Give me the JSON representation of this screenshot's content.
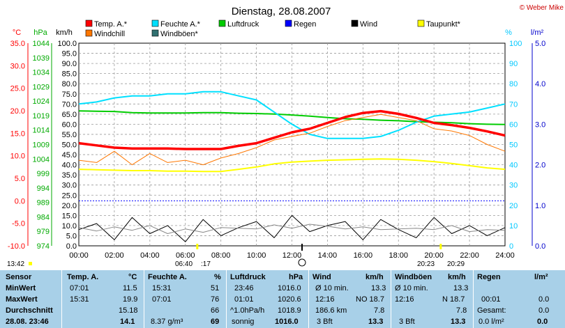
{
  "header": {
    "title": "Dienstag, 28.08.2007",
    "credit": "© Weber Mike"
  },
  "colors": {
    "temp": "#ff0000",
    "humidity": "#00e0ff",
    "pressure": "#00cc00",
    "rain": "#0000ff",
    "wind": "#000000",
    "dewpoint": "#ffff00",
    "windchill": "#ff7700",
    "gust": "#307070",
    "grid": "#9a9a9a"
  },
  "chart_data": {
    "type": "line",
    "title": "Dienstag, 28.08.2007",
    "legend": [
      {
        "name": "Temp. A.*",
        "color": "#ff0000"
      },
      {
        "name": "Feuchte A.*",
        "color": "#00e0ff"
      },
      {
        "name": "Luftdruck",
        "color": "#00cc00"
      },
      {
        "name": "Regen",
        "color": "#0000ff"
      },
      {
        "name": "Wind",
        "color": "#000000"
      },
      {
        "name": "Taupunkt*",
        "color": "#ffff00"
      },
      {
        "name": "Windchill",
        "color": "#ff7700"
      },
      {
        "name": "Windböen*",
        "color": "#307070"
      }
    ],
    "axis_units": {
      "temp": "°C",
      "pressure": "hPa",
      "wind": "km/h",
      "humidity": "%",
      "rain": "l/m²"
    },
    "temp_ticks": [
      "35.0",
      "30.0",
      "25.0",
      "20.0",
      "15.0",
      "10.0",
      "5.0",
      "0.0",
      "-5.0",
      "-10.0"
    ],
    "pressure_ticks": [
      "1044",
      "1039",
      "1034",
      "1029",
      "1024",
      "1019",
      "1014",
      "1009",
      "1004",
      "999",
      "994",
      "989",
      "984",
      "979",
      "974"
    ],
    "wind_ticks": [
      "100.0",
      "95.0",
      "90.0",
      "85.0",
      "80.0",
      "75.0",
      "70.0",
      "65.0",
      "60.0",
      "55.0",
      "50.0",
      "45.0",
      "40.0",
      "35.0",
      "30.0",
      "25.0",
      "20.0",
      "15.0",
      "10.0",
      "5.0",
      "0.0"
    ],
    "humidity_ticks": [
      "100",
      "90",
      "80",
      "70",
      "60",
      "50",
      "40",
      "30",
      "20",
      "10",
      "0"
    ],
    "rain_ticks": [
      "5.0",
      "4.0",
      "3.0",
      "2.0",
      "1.0",
      "0.0"
    ],
    "time_ticks": [
      "00:00",
      "02:00",
      "04:00",
      "06:00",
      "08:00",
      "10:00",
      "12:00",
      "14:00",
      "16:00",
      "18:00",
      "20:00",
      "22:00",
      "24:00"
    ],
    "temp_ylim": [
      -10,
      35
    ],
    "wind_ylim": [
      0,
      100
    ],
    "x_hours": [
      0,
      1,
      2,
      3,
      4,
      5,
      6,
      7,
      8,
      9,
      10,
      11,
      12,
      13,
      14,
      15,
      16,
      17,
      18,
      19,
      20,
      21,
      22,
      23,
      24
    ],
    "temperature": [
      12.8,
      12.3,
      11.8,
      11.6,
      11.6,
      11.6,
      11.5,
      11.5,
      11.5,
      12.2,
      12.8,
      14.0,
      15.2,
      16.0,
      17.3,
      18.6,
      19.5,
      19.9,
      19.3,
      18.4,
      17.3,
      16.8,
      16.2,
      15.4,
      14.5
    ],
    "humidity": [
      70,
      71,
      73,
      74,
      74,
      75,
      75,
      76,
      76,
      74,
      72,
      66,
      60,
      55,
      53,
      53,
      53,
      54,
      57,
      61,
      64,
      65,
      66,
      68,
      70
    ],
    "pressure": [
      1020.6,
      1020.5,
      1020.4,
      1020.0,
      1019.9,
      1019.9,
      1019.9,
      1020.0,
      1020.0,
      1019.8,
      1019.7,
      1019.5,
      1019.2,
      1018.8,
      1018.3,
      1017.9,
      1017.7,
      1017.4,
      1017.2,
      1016.9,
      1016.7,
      1016.5,
      1016.2,
      1016.0,
      1015.9
    ],
    "dewpoint": [
      7.0,
      6.9,
      6.8,
      6.7,
      6.7,
      6.6,
      6.6,
      6.5,
      6.5,
      7.0,
      7.5,
      8.2,
      8.6,
      8.8,
      9.0,
      9.1,
      9.2,
      9.3,
      9.2,
      9.0,
      8.7,
      8.3,
      7.8,
      7.3,
      7.0
    ],
    "windchill": [
      9.0,
      8.5,
      11.0,
      8.0,
      10.5,
      8.5,
      9.0,
      8.0,
      9.5,
      10.5,
      11.8,
      13.5,
      14.3,
      15.0,
      16.5,
      17.8,
      18.5,
      19.2,
      18.5,
      17.8,
      16.0,
      15.5,
      14.5,
      12.5,
      11.0
    ],
    "wind": [
      8,
      11,
      3,
      14,
      6,
      10,
      2,
      13,
      5,
      9,
      12,
      4,
      15,
      7,
      10,
      12,
      3,
      13,
      8,
      4,
      14,
      6,
      10,
      5,
      9
    ]
  },
  "indicators": {
    "sunrise": "06:40",
    "sunset": "20:23",
    "sunrise_short": ":17",
    "sunset_short": "20:29",
    "current_time": "13:42"
  },
  "table": {
    "headers": {
      "sensor": "Sensor",
      "temp": "Temp. A.",
      "temp_unit": "°C",
      "hum": "Feuchte A.",
      "hum_unit": "%",
      "press": "Luftdruck",
      "press_unit": "hPa",
      "wind": "Wind",
      "wind_unit": "km/h",
      "gust": "Windböen",
      "gust_unit": "km/h",
      "rain": "Regen",
      "rain_unit": "l/m²"
    },
    "rows": {
      "min": {
        "label": "MinWert",
        "temp_time": "07:01",
        "temp": "11.5",
        "hum_time": "15:31",
        "hum": "51",
        "press_time": "23:46",
        "press": "1016.0",
        "wind_label": "Ø 10 min.",
        "wind": "13.3",
        "gust_label": "Ø 10 min.",
        "gust": "13.3"
      },
      "max": {
        "label": "MaxWert",
        "temp_time": "15:31",
        "temp": "19.9",
        "hum_time": "07:01",
        "hum": "76",
        "press_time": "01:01",
        "press": "1020.6",
        "wind_time": "12:16",
        "wind": "NO 18.7",
        "gust_time": "12:16",
        "gust": "N 18.7",
        "rain_time": "00:01",
        "rain": "0.0"
      },
      "avg": {
        "label": "Durchschnitt",
        "temp": "15.18",
        "hum": "66",
        "press_label": "^1.0hPa/h",
        "press": "1018.9",
        "wind_label": "186.6 km",
        "wind": "7.8",
        "gust": "7.8",
        "rain_label": "Gesamt:",
        "rain": "0.0"
      },
      "cur": {
        "label": "28.08. 23:46",
        "temp": "14.1",
        "hum_label": "8.37 g/m³",
        "hum": "69",
        "press_label": "sonnig",
        "press": "1016.0",
        "wind_label": "3 Bft",
        "wind": "13.3",
        "gust_label": "3 Bft",
        "gust": "13.3",
        "rain_label": "0.0 l/m²",
        "rain": "0.0"
      }
    }
  }
}
